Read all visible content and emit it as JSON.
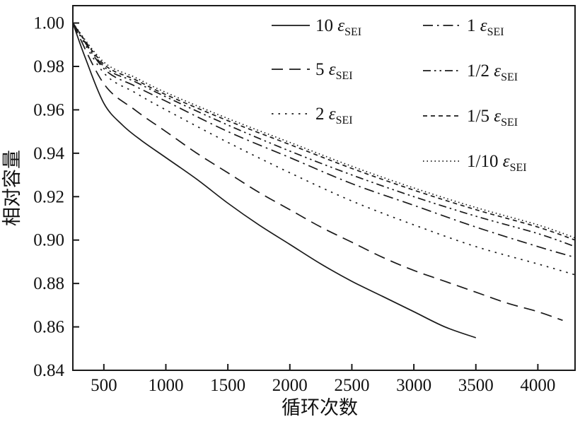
{
  "figure": {
    "background": "#ffffff",
    "ink_color": "#1a1a1a"
  },
  "chart_data": {
    "type": "line",
    "title": "",
    "xlabel": "循环次数",
    "ylabel": "相对容量",
    "xlim": [
      250,
      4300
    ],
    "ylim": [
      0.84,
      1.008
    ],
    "x_ticks": [
      500,
      1000,
      1500,
      2000,
      2500,
      3000,
      3500,
      4000
    ],
    "y_ticks": [
      0.84,
      0.86,
      0.88,
      0.9,
      0.92,
      0.94,
      0.96,
      0.98,
      1.0
    ],
    "grid": false,
    "legend_position": "top-right-inside",
    "series": [
      {
        "name": "10 ε_SEI",
        "legend": {
          "value": "10",
          "symbol": "ε",
          "subscript": "SEI"
        },
        "line_style": "solid",
        "x": [
          250,
          350,
          500,
          650,
          800,
          1000,
          1250,
          1500,
          1750,
          2000,
          2250,
          2500,
          2750,
          3000,
          3250,
          3500
        ],
        "y": [
          1.0,
          0.984,
          0.963,
          0.953,
          0.946,
          0.938,
          0.928,
          0.917,
          0.907,
          0.898,
          0.889,
          0.881,
          0.874,
          0.867,
          0.86,
          0.855
        ]
      },
      {
        "name": "5 ε_SEI",
        "legend": {
          "value": "5",
          "symbol": "ε",
          "subscript": "SEI"
        },
        "line_style": "long-dash",
        "x": [
          250,
          500,
          750,
          1000,
          1250,
          1500,
          1750,
          2000,
          2250,
          2500,
          2750,
          3000,
          3250,
          3500,
          3750,
          4000,
          4200
        ],
        "y": [
          1.0,
          0.972,
          0.96,
          0.95,
          0.94,
          0.931,
          0.922,
          0.914,
          0.906,
          0.899,
          0.892,
          0.886,
          0.881,
          0.876,
          0.871,
          0.867,
          0.863
        ]
      },
      {
        "name": "2 ε_SEI",
        "legend": {
          "value": "2",
          "symbol": "ε",
          "subscript": "SEI"
        },
        "line_style": "dot",
        "x": [
          250,
          500,
          750,
          1000,
          1500,
          2000,
          2500,
          3000,
          3500,
          4000,
          4300
        ],
        "y": [
          1.0,
          0.977,
          0.968,
          0.96,
          0.945,
          0.931,
          0.918,
          0.907,
          0.897,
          0.889,
          0.884
        ]
      },
      {
        "name": "1 ε_SEI",
        "legend": {
          "value": "1",
          "symbol": "ε",
          "subscript": "SEI"
        },
        "line_style": "dash-dot",
        "x": [
          250,
          500,
          750,
          1000,
          1500,
          2000,
          2500,
          3000,
          3500,
          4000,
          4300
        ],
        "y": [
          1.0,
          0.979,
          0.971,
          0.964,
          0.95,
          0.938,
          0.926,
          0.916,
          0.906,
          0.897,
          0.892
        ]
      },
      {
        "name": "1/2 ε_SEI",
        "legend": {
          "value": "1/2",
          "symbol": "ε",
          "subscript": "SEI"
        },
        "line_style": "dash-dot-dot",
        "x": [
          250,
          500,
          750,
          1000,
          1500,
          2000,
          2500,
          3000,
          3500,
          4000,
          4300
        ],
        "y": [
          1.0,
          0.98,
          0.973,
          0.966,
          0.953,
          0.941,
          0.93,
          0.92,
          0.911,
          0.903,
          0.897
        ]
      },
      {
        "name": "1/5 ε_SEI",
        "legend": {
          "value": "1/5",
          "symbol": "ε",
          "subscript": "SEI"
        },
        "line_style": "short-dash",
        "x": [
          250,
          500,
          750,
          1000,
          1500,
          2000,
          2500,
          3000,
          3500,
          4000,
          4300
        ],
        "y": [
          1.0,
          0.981,
          0.974,
          0.967,
          0.955,
          0.944,
          0.933,
          0.923,
          0.914,
          0.906,
          0.9
        ]
      },
      {
        "name": "1/10 ε_SEI",
        "legend": {
          "value": "1/10",
          "symbol": "ε",
          "subscript": "SEI"
        },
        "line_style": "fine-dot",
        "x": [
          250,
          500,
          750,
          1000,
          1500,
          2000,
          2500,
          3000,
          3500,
          4000,
          4300
        ],
        "y": [
          1.0,
          0.982,
          0.975,
          0.968,
          0.956,
          0.945,
          0.934,
          0.924,
          0.915,
          0.907,
          0.901
        ]
      }
    ]
  }
}
